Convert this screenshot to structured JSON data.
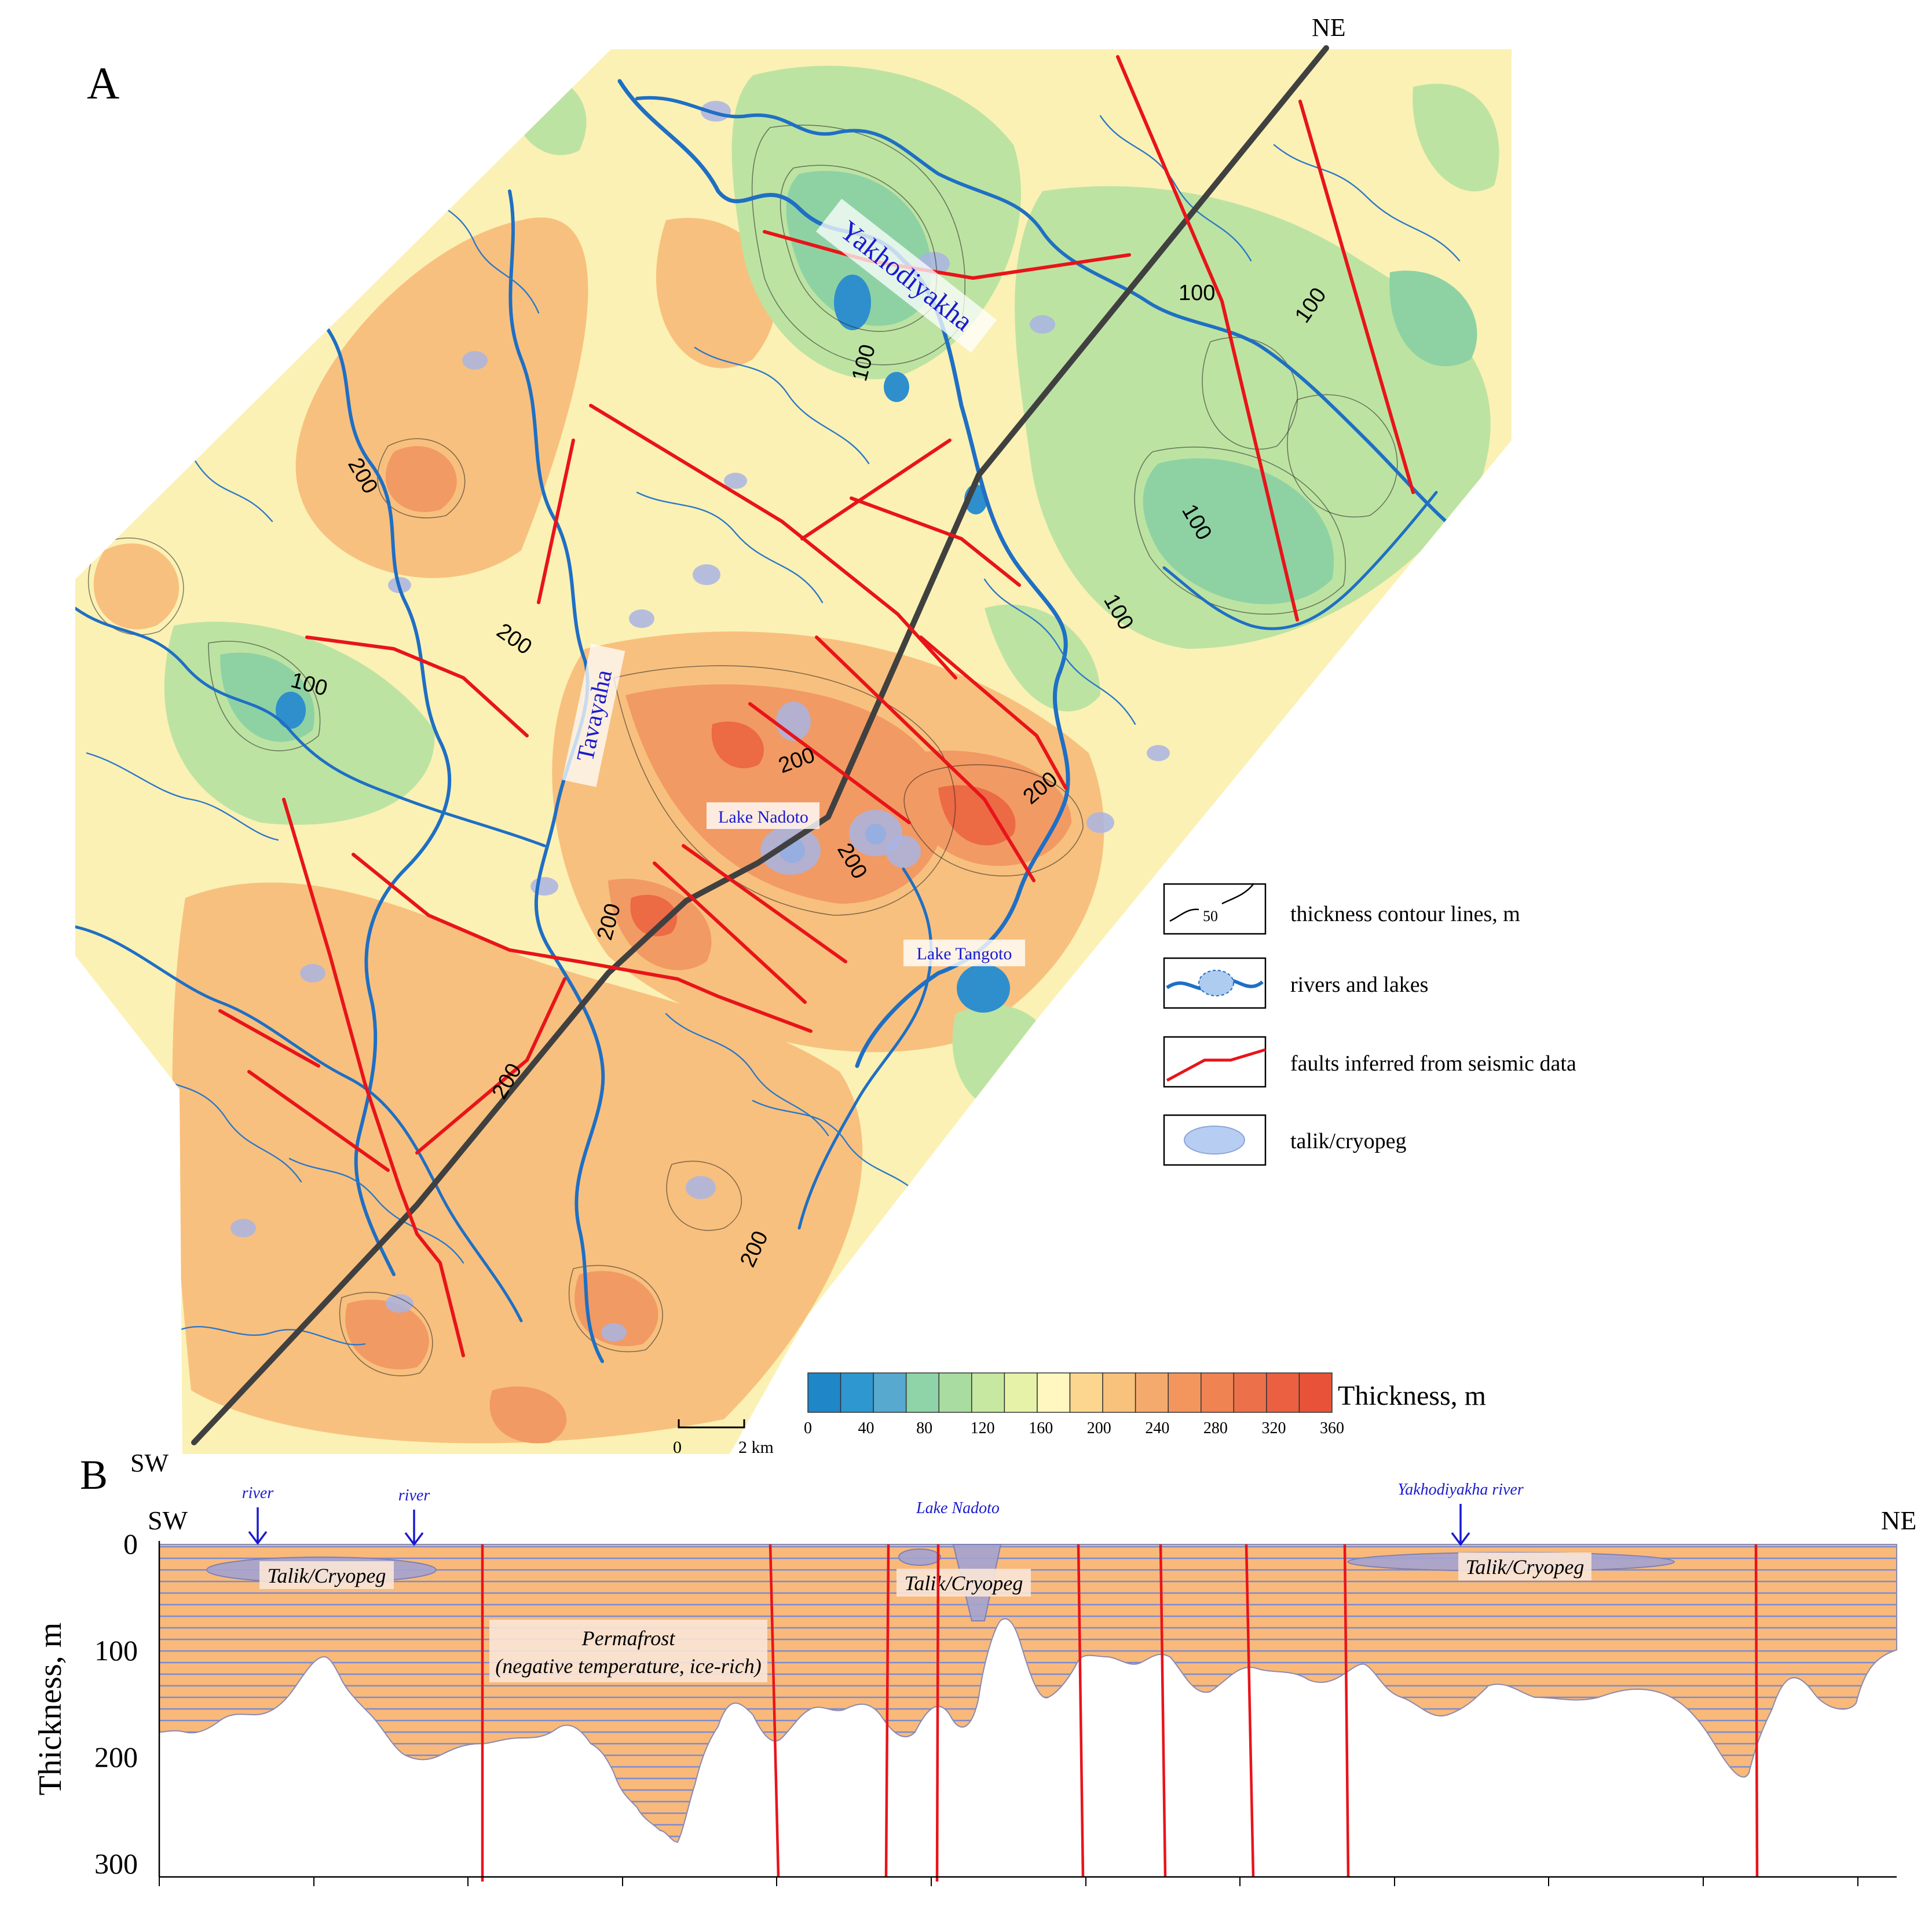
{
  "panel_a": {
    "label": "A",
    "direction_ne": "NE",
    "direction_sw": "SW",
    "contour_labels": [
      "100",
      "100",
      "100",
      "100",
      "100",
      "100",
      "200",
      "200",
      "200",
      "200",
      "200",
      "200",
      "200",
      "200"
    ],
    "rivers": [
      {
        "name": "Yakhodiyakha"
      },
      {
        "name": "Tavayaha"
      }
    ],
    "lakes": [
      {
        "name": "Lake Nadoto"
      },
      {
        "name": "Lake Tangoto"
      }
    ],
    "scale_bar": {
      "start": "0",
      "end": "2 km"
    },
    "colorbar": {
      "title": "Thickness, m",
      "tick_labels": [
        "0",
        "40",
        "80",
        "120",
        "160",
        "200",
        "240",
        "280",
        "320",
        "360"
      ],
      "colors": [
        "#1f86c7",
        "#2e97cf",
        "#57a9cf",
        "#8fd3a8",
        "#a9dca0",
        "#c7e8a0",
        "#e6f2a8",
        "#fff7bf",
        "#fcd68f",
        "#f8c17c",
        "#f5aa6d",
        "#f2965e",
        "#ef8352",
        "#ec7049",
        "#ea6040",
        "#e85238"
      ]
    },
    "legend": [
      {
        "symbol": "contour-line",
        "sample": "50",
        "label": "thickness contour lines, m"
      },
      {
        "symbol": "river-lake",
        "label": "rivers and lakes"
      },
      {
        "symbol": "fault-line",
        "label": "faults inferred from seismic data"
      },
      {
        "symbol": "talik-ellipse",
        "label": "talik/cryopeg"
      }
    ],
    "colors": {
      "river": "#1f6fc4",
      "fault": "#e8141a",
      "profile_line": "#404040",
      "talik": "#a9b4e3"
    }
  },
  "panel_b": {
    "label": "B",
    "left_end": "SW",
    "right_end": "NE",
    "ylabel": "Thickness, m",
    "y_ticks": [
      "0",
      "100",
      "200",
      "300"
    ],
    "annotations": [
      {
        "text": "river"
      },
      {
        "text": "river"
      },
      {
        "text": "Lake Nadoto"
      },
      {
        "text": "Yakhodiyakha river"
      }
    ],
    "talik_labels": [
      "Talik/Cryopeg",
      "Talik/Cryopeg",
      "Talik/Cryopeg"
    ],
    "permafrost_label_line1": "Permafrost",
    "permafrost_label_line2": "(negative temperature, ice-rich)",
    "colors": {
      "permafrost": "#f9b97a",
      "stripes": "#7b8bd0",
      "fault": "#e8141a",
      "annotation": "#1a1ad0"
    }
  }
}
